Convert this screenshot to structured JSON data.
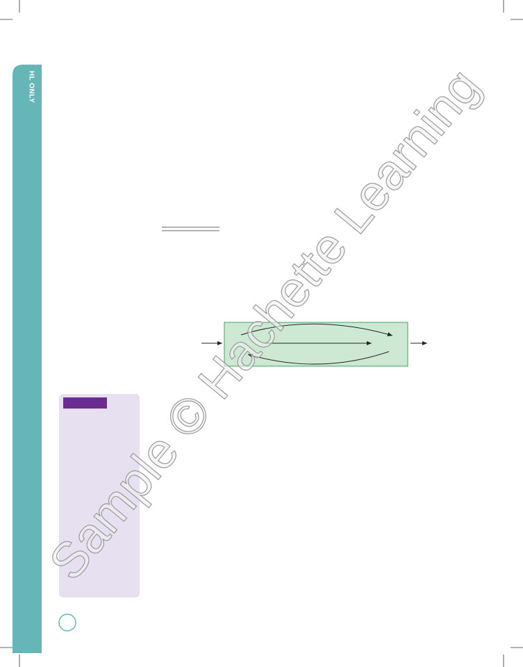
{
  "sidebar_label": "HL ONLY",
  "watermark": "Sample © Hachette Learning"
}
